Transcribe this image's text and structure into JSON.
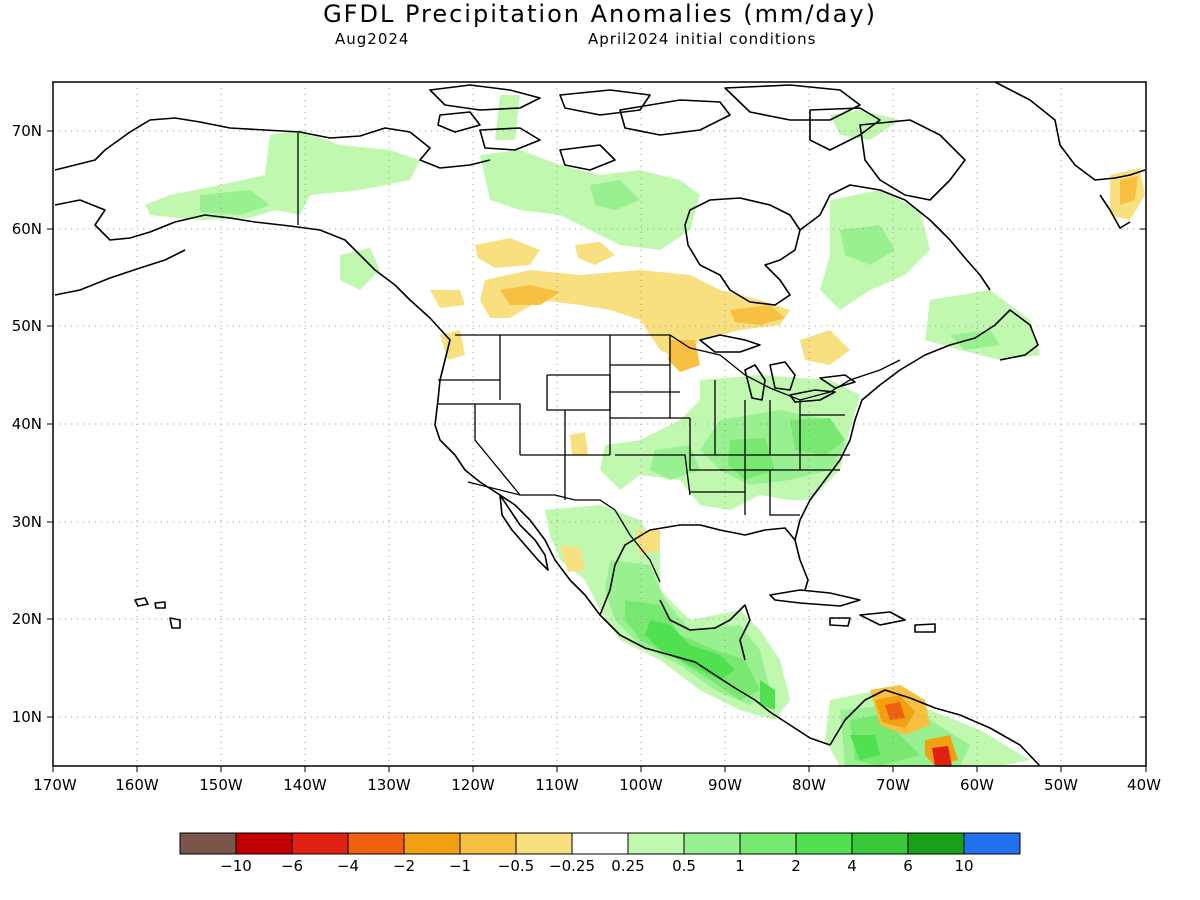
{
  "title": "GFDL Precipitation Anomalies (mm/day)",
  "valid_month": "Aug2024",
  "initial_conditions": "April2024 initial conditions",
  "axes": {
    "lon_labels": [
      "170W",
      "160W",
      "150W",
      "140W",
      "130W",
      "120W",
      "110W",
      "100W",
      "90W",
      "80W",
      "70W",
      "60W",
      "50W",
      "40W"
    ],
    "lat_labels": [
      "10N",
      "20N",
      "30N",
      "40N",
      "50N",
      "60N",
      "70N"
    ]
  },
  "colorbar": {
    "colors": [
      "#7a5549",
      "#c00000",
      "#e02010",
      "#f06010",
      "#f0a010",
      "#f8c040",
      "#f8e080",
      "#ffffff",
      "#c0f8b0",
      "#98f090",
      "#78e870",
      "#50e050",
      "#38c838",
      "#18a018",
      "#2070f0"
    ],
    "labels": [
      "−10",
      "−6",
      "−4",
      "−2",
      "−1",
      "−0.5",
      "−0.25",
      "0.25",
      "0.5",
      "1",
      "2",
      "4",
      "6",
      "10"
    ]
  },
  "map_features": [
    "coastlines",
    "US state borders",
    "US-Canada border",
    "Mexico border",
    "Alaska-Canada border"
  ]
}
